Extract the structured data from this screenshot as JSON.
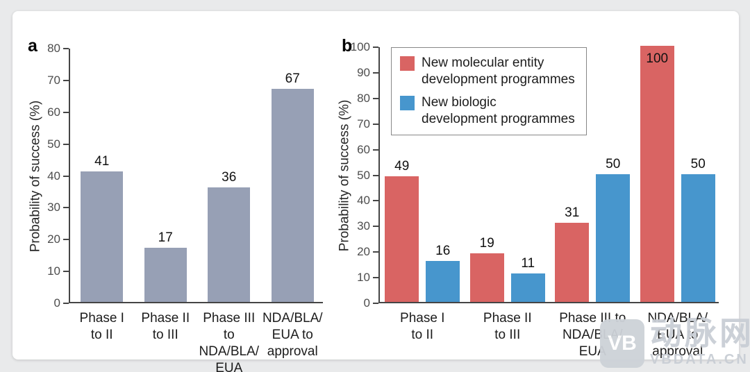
{
  "page": {
    "background": "#e9eaeb",
    "card_background": "#ffffff"
  },
  "watermark": {
    "logo_monogram": "VB",
    "brand_cn": "动脉网",
    "site": "VBDATA.CN",
    "color": "#c9ced5"
  },
  "chart_data": [
    {
      "panel": "a",
      "type": "bar",
      "title": "",
      "xlabel": "",
      "ylabel": "Probability of success (%)",
      "ylim": [
        0,
        80
      ],
      "ytick_step": 10,
      "grid": false,
      "legend_position": "none",
      "categories": [
        "Phase I\nto II",
        "Phase II\nto III",
        "Phase III to\nNDA/BLA/\nEUA",
        "NDA/BLA/\nEUA to\napproval"
      ],
      "series": [
        {
          "name": "",
          "color": "#97a0b5",
          "values": [
            41,
            17,
            36,
            67
          ]
        }
      ],
      "value_labels_shown": true,
      "axis_color": "#454545"
    },
    {
      "panel": "b",
      "type": "bar",
      "title": "",
      "xlabel": "",
      "ylabel": "Probability of success (%)",
      "ylim": [
        0,
        100
      ],
      "ytick_step": 10,
      "grid": false,
      "legend_position": "top-left",
      "categories": [
        "Phase I\nto II",
        "Phase II\nto III",
        "Phase III to\nNDA/BLA/\nEUA",
        "NDA/BLA/\nEUA to\napproval"
      ],
      "series": [
        {
          "name": "New molecular entity\ndevelopment programmes",
          "color": "#d96463",
          "values": [
            49,
            19,
            31,
            100
          ]
        },
        {
          "name": "New biologic\ndevelopment programmes",
          "color": "#4796cd",
          "values": [
            16,
            11,
            50,
            50
          ]
        }
      ],
      "value_labels_shown": true,
      "axis_color": "#454545"
    }
  ]
}
